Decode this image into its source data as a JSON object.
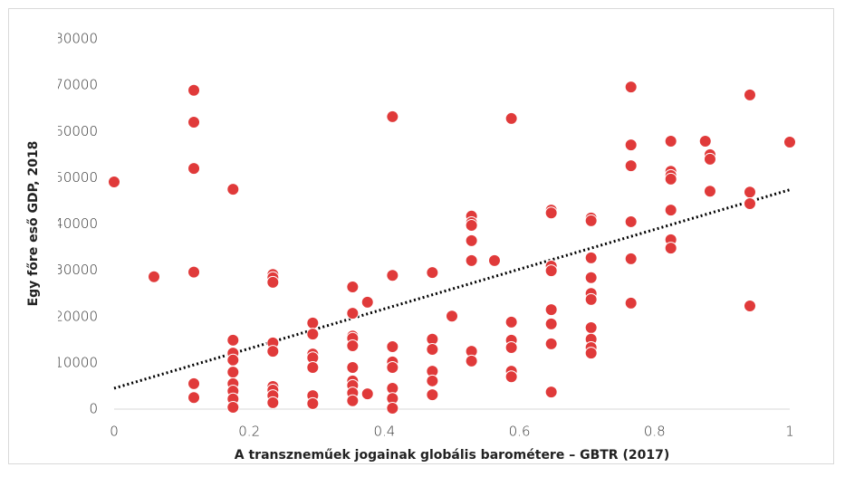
{
  "chart_data": {
    "type": "scatter",
    "xlabel": "A transzneműek jogainak globális barométere – GBTR (2017)",
    "ylabel": "Egy főre eső GDP, 2018",
    "xlim": [
      0,
      1
    ],
    "xticks": [
      0,
      0.2,
      0.4,
      0.6,
      0.8,
      1
    ],
    "ylim": [
      0,
      80000
    ],
    "yticks": [
      0,
      10000,
      20000,
      30000,
      40000,
      50000,
      60000,
      70000,
      80000
    ],
    "grid": false,
    "series": [
      {
        "color": "#e03a3a",
        "x": [
          0,
          0.059,
          0.118,
          0.118,
          0.118,
          0.118,
          0.118,
          0.118,
          0.176,
          0.176,
          0.176,
          0.176,
          0.176,
          0.176,
          0.176,
          0.176,
          0.176,
          0.235,
          0.235,
          0.235,
          0.235,
          0.235,
          0.235,
          0.235,
          0.235,
          0.235,
          0.294,
          0.294,
          0.294,
          0.294,
          0.294,
          0.294,
          0.294,
          0.353,
          0.353,
          0.353,
          0.353,
          0.353,
          0.353,
          0.353,
          0.353,
          0.353,
          0.353,
          0.375,
          0.375,
          0.412,
          0.412,
          0.412,
          0.412,
          0.412,
          0.412,
          0.412,
          0.412,
          0.471,
          0.471,
          0.471,
          0.471,
          0.471,
          0.471,
          0.5,
          0.529,
          0.529,
          0.529,
          0.529,
          0.529,
          0.529,
          0.529,
          0.563,
          0.588,
          0.588,
          0.588,
          0.588,
          0.588,
          0.588,
          0.647,
          0.647,
          0.647,
          0.647,
          0.647,
          0.647,
          0.647,
          0.647,
          0.706,
          0.706,
          0.706,
          0.706,
          0.706,
          0.706,
          0.706,
          0.706,
          0.706,
          0.706,
          0.765,
          0.765,
          0.765,
          0.765,
          0.765,
          0.765,
          0.824,
          0.824,
          0.824,
          0.824,
          0.824,
          0.824,
          0.824,
          0.875,
          0.882,
          0.882,
          0.882,
          0.941,
          0.941,
          0.941,
          0.941,
          1
        ],
        "values": [
          49100,
          28600,
          68900,
          62000,
          52000,
          29600,
          5500,
          2500,
          47500,
          14900,
          12100,
          10600,
          8000,
          5500,
          3900,
          2200,
          400,
          29100,
          28400,
          27400,
          14300,
          12500,
          4900,
          4100,
          2900,
          1400,
          18600,
          16200,
          11900,
          11100,
          9000,
          2900,
          1200,
          26400,
          20700,
          15800,
          15300,
          13700,
          9000,
          6100,
          5100,
          3500,
          1800,
          23100,
          3300,
          63200,
          28900,
          13500,
          10200,
          9000,
          4500,
          2300,
          200,
          29500,
          15100,
          12900,
          8200,
          6100,
          3100,
          20100,
          41700,
          40300,
          39700,
          36400,
          32100,
          12500,
          10400,
          32100,
          62800,
          18800,
          14900,
          13300,
          8200,
          7000,
          43000,
          42400,
          30900,
          29900,
          21500,
          18400,
          14100,
          3700,
          41300,
          40700,
          32700,
          28400,
          25000,
          23700,
          17600,
          15100,
          13300,
          12100,
          69600,
          57100,
          52600,
          40500,
          32500,
          22900,
          57900,
          51400,
          50500,
          49700,
          43000,
          36600,
          34800,
          57900,
          55000,
          54000,
          47100,
          67900,
          46900,
          44400,
          22300,
          57700
        ]
      }
    ],
    "trendline": {
      "x": [
        0,
        1
      ],
      "values": [
        4500,
        47400
      ],
      "color": "#000000"
    }
  }
}
